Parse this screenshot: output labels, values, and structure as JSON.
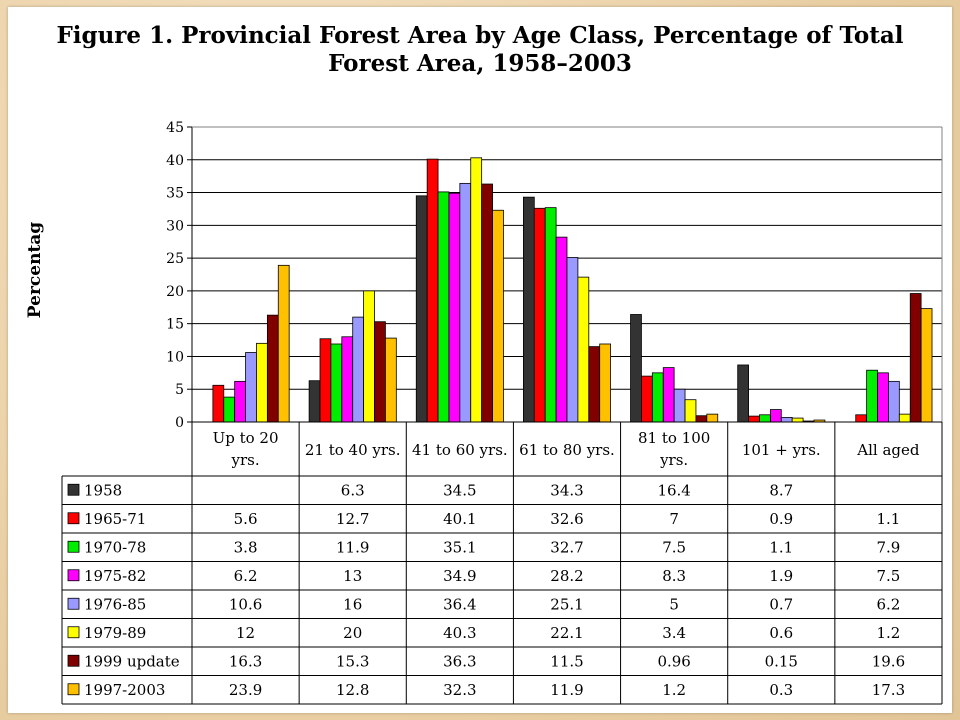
{
  "title_lines": [
    "Figure 1. Provincial Forest Area by Age Class, Percentage of Total",
    "Forest Area, 1958–2003"
  ],
  "chart_data": {
    "type": "bar",
    "title": "Figure 1. Provincial Forest Area by Age Class, Percentage of Total Forest Area, 1958–2003",
    "xlabel": "",
    "ylabel": "Percentag",
    "ylim": [
      0,
      45
    ],
    "yticks": [
      0,
      5,
      10,
      15,
      20,
      25,
      30,
      35,
      40,
      45
    ],
    "grid": true,
    "legend": "data-table",
    "categories": [
      [
        "Up to 20",
        "yrs."
      ],
      [
        "21 to 40 yrs."
      ],
      [
        "41 to 60 yrs."
      ],
      [
        "61 to 80 yrs."
      ],
      [
        "81 to 100",
        "yrs."
      ],
      [
        "101 + yrs."
      ],
      [
        "All aged"
      ]
    ],
    "series": [
      {
        "name": "1958",
        "color": "#333333",
        "values": [
          null,
          6.3,
          34.5,
          34.3,
          16.4,
          8.7,
          null
        ],
        "labels": [
          "",
          "6.3",
          "34.5",
          "34.3",
          "16.4",
          "8.7",
          ""
        ]
      },
      {
        "name": "1965-71",
        "color": "#ff0000",
        "values": [
          5.6,
          12.7,
          40.1,
          32.6,
          7,
          0.9,
          1.1
        ],
        "labels": [
          "5.6",
          "12.7",
          "40.1",
          "32.6",
          "7",
          "0.9",
          "1.1"
        ]
      },
      {
        "name": "1970-78",
        "color": "#00ee00",
        "values": [
          3.8,
          11.9,
          35.1,
          32.7,
          7.5,
          1.1,
          7.9
        ],
        "labels": [
          "3.8",
          "11.9",
          "35.1",
          "32.7",
          "7.5",
          "1.1",
          "7.9"
        ]
      },
      {
        "name": "1975-82",
        "color": "#ff00ff",
        "values": [
          6.2,
          13,
          34.9,
          28.2,
          8.3,
          1.9,
          7.5
        ],
        "labels": [
          "6.2",
          "13",
          "34.9",
          "28.2",
          "8.3",
          "1.9",
          "7.5"
        ]
      },
      {
        "name": "1976-85",
        "color": "#9999ff",
        "values": [
          10.6,
          16,
          36.4,
          25.1,
          5,
          0.7,
          6.2
        ],
        "labels": [
          "10.6",
          "16",
          "36.4",
          "25.1",
          "5",
          "0.7",
          "6.2"
        ]
      },
      {
        "name": "1979-89",
        "color": "#ffff00",
        "values": [
          12,
          20,
          40.3,
          22.1,
          3.4,
          0.6,
          1.2
        ],
        "labels": [
          "12",
          "20",
          "40.3",
          "22.1",
          "3.4",
          "0.6",
          "1.2"
        ]
      },
      {
        "name": "1999 update",
        "color": "#800000",
        "values": [
          16.3,
          15.3,
          36.3,
          11.5,
          0.96,
          0.15,
          19.6
        ],
        "labels": [
          "16.3",
          "15.3",
          "36.3",
          "11.5",
          "0.96",
          "0.15",
          "19.6"
        ]
      },
      {
        "name": "1997-2003",
        "color": "#ffc000",
        "values": [
          23.9,
          12.8,
          32.3,
          11.9,
          1.2,
          0.3,
          17.3
        ],
        "labels": [
          "23.9",
          "12.8",
          "32.3",
          "11.9",
          "1.2",
          "0.3",
          "17.3"
        ]
      }
    ]
  }
}
